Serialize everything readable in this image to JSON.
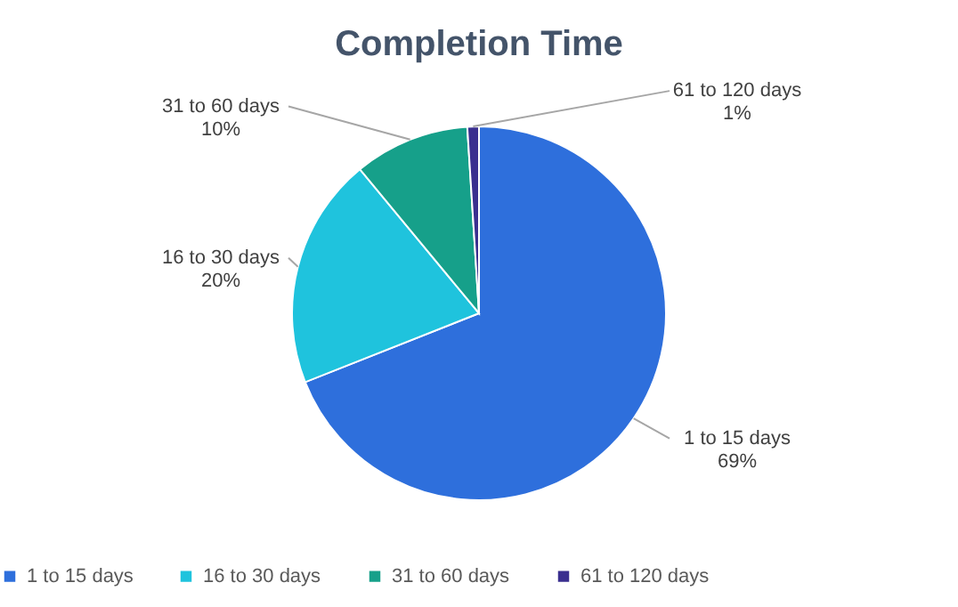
{
  "chart_data": {
    "type": "pie",
    "title": "Completion Time",
    "categories": [
      "1 to 15 days",
      "16 to 30 days",
      "31 to 60 days",
      "61 to 120 days"
    ],
    "values": [
      69,
      20,
      10,
      1
    ],
    "value_labels": [
      "69%",
      "20%",
      "10%",
      "1%"
    ],
    "colors": [
      "#2e6fdc",
      "#1fc3dd",
      "#16a08a",
      "#3a2f8f"
    ],
    "legend": "bottom"
  }
}
